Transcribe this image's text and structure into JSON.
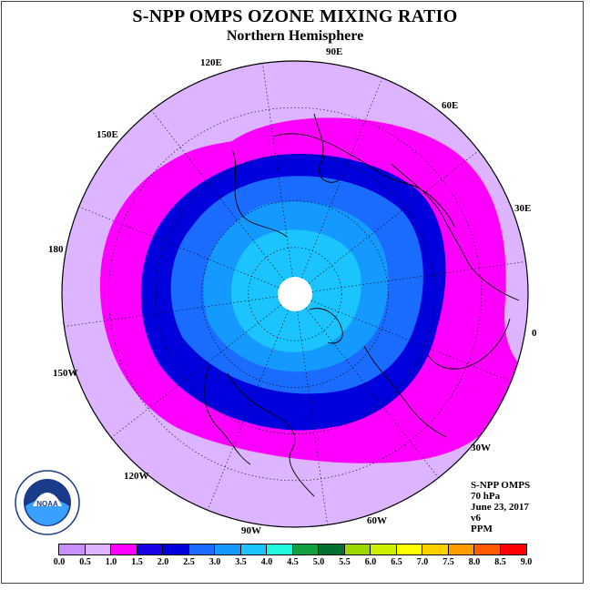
{
  "title": "S-NPP OMPS OZONE MIXING RATIO",
  "subtitle": "Northern Hemisphere",
  "longitude_labels": [
    "90E",
    "60E",
    "30E",
    "0",
    "30W",
    "60W",
    "90W",
    "120W",
    "150W",
    "180",
    "150E",
    "120E"
  ],
  "info": {
    "line1": "S-NPP OMPS",
    "line2": "70 hPa",
    "line3": "June 23, 2017",
    "line4": "v6",
    "line5": "PPM"
  },
  "logo": {
    "text": "NOAA",
    "ring_text": "NATIONAL OCEANIC AND ATMOSPHERIC ADMINISTRATION",
    "ring_text_bottom": "U.S. DEPARTMENT OF COMMERCE"
  },
  "colorbar": {
    "ticks": [
      "0.0",
      "0.5",
      "1.0",
      "1.5",
      "2.0",
      "2.5",
      "3.0",
      "3.5",
      "4.0",
      "4.5",
      "5.0",
      "5.5",
      "6.0",
      "6.5",
      "7.0",
      "7.5",
      "8.0",
      "8.5",
      "9.0"
    ],
    "colors": [
      "#c890ff",
      "#e0b0ff",
      "#ff00ff",
      "#ee00ee",
      "#0000ff",
      "#1e64ff",
      "#0096ff",
      "#00c0ff",
      "#00ffee",
      "#00a050",
      "#008040",
      "#90e000",
      "#d0ff00",
      "#ffff00",
      "#ffd000",
      "#ffa000",
      "#ff6000",
      "#ff0000",
      "#a05030"
    ],
    "colors_shown": [
      "#c890ff",
      "#dcb4ff",
      "#ff00ff",
      "#1a00e6",
      "#0000dd",
      "#1a6cff",
      "#149aff",
      "#1cc4ff",
      "#20f8e0",
      "#10a040",
      "#007030",
      "#9cd800",
      "#ccf000",
      "#ffff00",
      "#ffd000",
      "#ff9c00",
      "#ff5a00",
      "#ff0000",
      "#9a5a3a"
    ]
  },
  "map_colors": {
    "outer": "#dcb4ff",
    "band_magenta": "#ff00ff",
    "band_darkblue": "#0000dd",
    "band_blue": "#1a6cff",
    "band_mid": "#149aff",
    "band_light": "#1cc4ff",
    "pole_hole": "#ffffff"
  }
}
